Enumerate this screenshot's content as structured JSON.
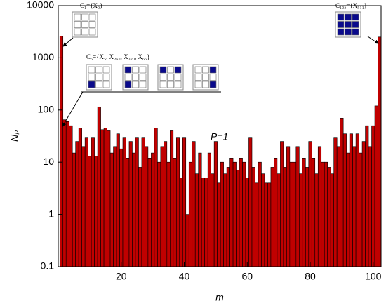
{
  "chart_data": {
    "type": "bar",
    "x": [
      1,
      2,
      3,
      4,
      5,
      6,
      7,
      8,
      9,
      10,
      11,
      12,
      13,
      14,
      15,
      16,
      17,
      18,
      19,
      20,
      21,
      22,
      23,
      24,
      25,
      26,
      27,
      28,
      29,
      30,
      31,
      32,
      33,
      34,
      35,
      36,
      37,
      38,
      39,
      40,
      41,
      42,
      43,
      44,
      45,
      46,
      47,
      48,
      49,
      50,
      51,
      52,
      53,
      54,
      55,
      56,
      57,
      58,
      59,
      60,
      61,
      62,
      63,
      64,
      65,
      66,
      67,
      68,
      69,
      70,
      71,
      72,
      73,
      74,
      75,
      76,
      77,
      78,
      79,
      80,
      81,
      82,
      83,
      84,
      85,
      86,
      87,
      88,
      89,
      90,
      91,
      92,
      93,
      94,
      95,
      96,
      97,
      98,
      99,
      100,
      101,
      102
    ],
    "values": [
      2600,
      65,
      60,
      50,
      15,
      25,
      45,
      20,
      30,
      13,
      30,
      13,
      115,
      42,
      45,
      40,
      15,
      20,
      35,
      18,
      30,
      12,
      25,
      15,
      30,
      8,
      30,
      20,
      12,
      15,
      45,
      10,
      20,
      25,
      10,
      40,
      12,
      30,
      5,
      30,
      1,
      10,
      25,
      6,
      15,
      5,
      5,
      15,
      6,
      25,
      4,
      10,
      6,
      8,
      12,
      10,
      7,
      12,
      10,
      5,
      30,
      8,
      4,
      10,
      6,
      4,
      4,
      8,
      12,
      6,
      25,
      8,
      20,
      10,
      10,
      20,
      6,
      12,
      8,
      25,
      12,
      6,
      20,
      10,
      10,
      8,
      6,
      30,
      20,
      70,
      35,
      15,
      35,
      20,
      35,
      15,
      25,
      50,
      20,
      50,
      120,
      2500
    ],
    "color": "#c00000",
    "xlabel": "m",
    "ylabel": "Nₚ",
    "xlim": [
      0,
      102.5
    ],
    "xticks": [
      20,
      40,
      60,
      80,
      100
    ],
    "ylim": [
      0.1,
      10000
    ],
    "yticks": [
      0.1,
      1,
      10,
      100,
      1000,
      10000
    ],
    "yscale": "log",
    "annotations": [
      "C₁={X₀}",
      "C₅={X₅, X₂₆₀, X₃₂₀, X₆₅}",
      "C₁₀₂={X₅₁₁}",
      "P=1"
    ]
  }
}
